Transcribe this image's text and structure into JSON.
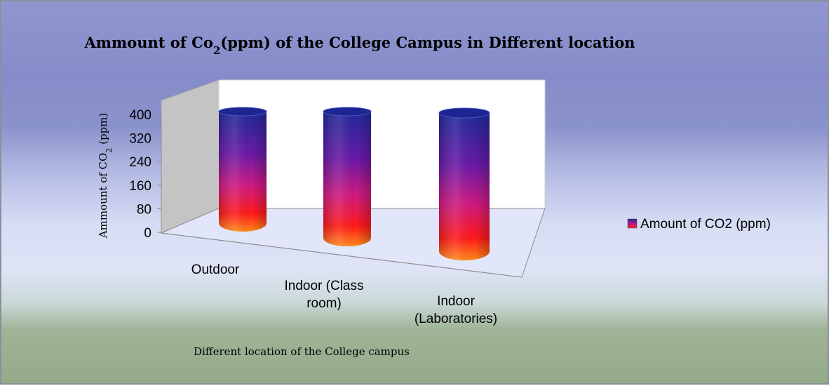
{
  "chart_data": {
    "type": "bar",
    "bar_shape": "cylinder-3d",
    "title": "Ammount of Co2(ppm) of the College Campus in  Different location",
    "title_parts": {
      "before": "Ammount of Co",
      "sub": "2",
      "after": "(ppm) of the College Campus in  Different location"
    },
    "xlabel": "Different location of the  College campus",
    "ylabel": "Ammount of CO2 (ppm)",
    "ylabel_parts": {
      "before": "Ammount of CO",
      "sub": "2",
      "after": " (ppm)"
    },
    "categories": [
      "Outdoor",
      "Indoor (Class room)",
      "Indoor (Laboratories)"
    ],
    "category_lines": [
      [
        "Outdoor"
      ],
      [
        "Indoor (Class",
        "room)"
      ],
      [
        "Indoor",
        "(Laboratories)"
      ]
    ],
    "series": [
      {
        "name": "Amount of CO2 (ppm)",
        "values": [
          400,
          400,
          400
        ]
      }
    ],
    "yticks": [
      "0",
      "80",
      "160",
      "240",
      "320",
      "400"
    ],
    "ylim": [
      0,
      400
    ],
    "legend_position": "right",
    "grid": false,
    "colors": {
      "bar_top": "#1f2a9a",
      "bar_mid": "#a01ab0",
      "bar_low": "#ff1a1a",
      "bar_base": "#ff9a1a"
    }
  }
}
